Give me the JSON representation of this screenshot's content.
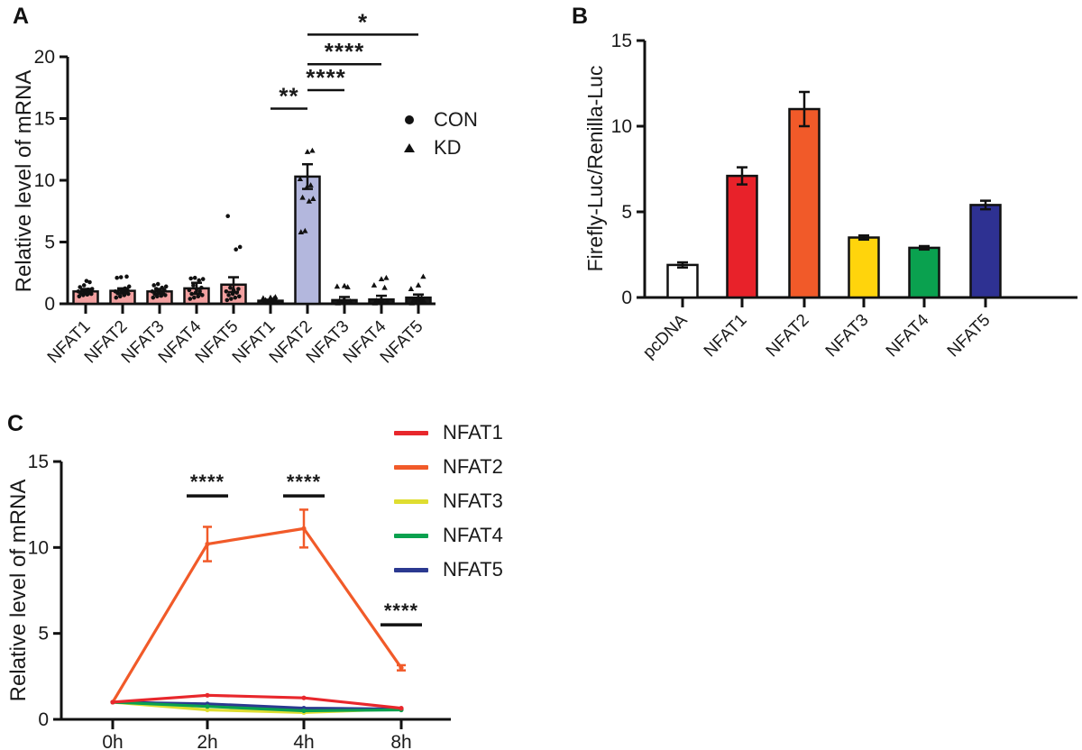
{
  "panels": {
    "a_label": "A",
    "b_label": "B",
    "c_label": "C"
  },
  "chart_data": [
    {
      "panel": "A",
      "type": "bar",
      "ylabel": "Relative level of mRNA",
      "ylim": [
        0,
        20
      ],
      "yticks": [
        0,
        5,
        10,
        15,
        20
      ],
      "categories": [
        "NFAT1",
        "NFAT2",
        "NFAT3",
        "NFAT4",
        "NFAT5",
        "NFAT1",
        "NFAT2",
        "NFAT3",
        "NFAT4",
        "NFAT5"
      ],
      "groups": [
        "CON",
        "CON",
        "CON",
        "CON",
        "CON",
        "KD",
        "KD",
        "KD",
        "KD",
        "KD"
      ],
      "values": [
        1.0,
        1.05,
        1.0,
        1.25,
        1.55,
        0.25,
        10.3,
        0.3,
        0.35,
        0.5
      ],
      "errors": [
        0.2,
        0.2,
        0.2,
        0.45,
        0.6,
        0.08,
        1.0,
        0.25,
        0.3,
        0.25
      ],
      "bar_colors": [
        "#F2A0A0",
        "#F2A0A0",
        "#F2A0A0",
        "#F2A0A0",
        "#F2A0A0",
        "#1A1A1A",
        "#B3B7DD",
        "#1A1A1A",
        "#1A1A1A",
        "#1A1A1A"
      ],
      "point_shapes": [
        "circle",
        "circle",
        "circle",
        "circle",
        "circle",
        "triangle",
        "triangle",
        "triangle",
        "triangle",
        "triangle"
      ],
      "points": [
        [
          0.6,
          0.7,
          0.75,
          0.8,
          0.85,
          0.9,
          0.95,
          1.0,
          1.0,
          1.05,
          1.1,
          1.15,
          1.2,
          1.35,
          1.5,
          1.75,
          1.85
        ],
        [
          0.5,
          0.6,
          0.7,
          0.8,
          0.85,
          0.9,
          0.95,
          1.0,
          1.05,
          1.1,
          1.15,
          1.25,
          1.4,
          2.1,
          2.15,
          2.2
        ],
        [
          0.5,
          0.6,
          0.65,
          0.7,
          0.8,
          0.9,
          0.95,
          1.0,
          1.05,
          1.1,
          1.2,
          1.3,
          1.4,
          1.5,
          1.6
        ],
        [
          0.4,
          0.5,
          0.6,
          0.7,
          0.8,
          0.9,
          1.0,
          1.1,
          1.2,
          1.3,
          1.5,
          1.9,
          2.0,
          2.05,
          2.1
        ],
        [
          0.3,
          0.4,
          0.5,
          0.6,
          0.7,
          0.8,
          0.9,
          1.0,
          1.1,
          1.2,
          1.3,
          4.4,
          4.6,
          7.1
        ],
        [
          0.1,
          0.15,
          0.2,
          0.25,
          0.3,
          0.35,
          0.4,
          0.45,
          0.5,
          0.55
        ],
        [
          5.8,
          5.9,
          8.3,
          8.5,
          8.6,
          9.4,
          9.6,
          10.1,
          12.3,
          12.4
        ],
        [
          0.05,
          0.1,
          0.15,
          0.2,
          0.25,
          0.3,
          1.35,
          1.4,
          1.45
        ],
        [
          0.05,
          0.1,
          0.15,
          0.2,
          0.25,
          0.3,
          1.3,
          1.5,
          2.0,
          2.1
        ],
        [
          0.05,
          0.1,
          0.15,
          0.2,
          0.3,
          0.4,
          0.5,
          1.2,
          1.5,
          2.2
        ]
      ],
      "significance": [
        {
          "from": 5,
          "to": 6,
          "y": 15.8,
          "label": "**"
        },
        {
          "from": 6,
          "to": 7,
          "y": 17.3,
          "label": "****"
        },
        {
          "from": 6,
          "to": 8,
          "y": 19.4,
          "label": "****"
        },
        {
          "from": 6,
          "to": 9,
          "y": 21.8,
          "label": "*"
        }
      ],
      "legend": [
        {
          "label": "CON",
          "marker": "circle"
        },
        {
          "label": "KD",
          "marker": "triangle"
        }
      ]
    },
    {
      "panel": "B",
      "type": "bar",
      "ylabel": "Firefly-Luc/Renilla-Luc",
      "ylim": [
        0,
        15
      ],
      "yticks": [
        0,
        5,
        10,
        15
      ],
      "categories": [
        "pcDNA",
        "NFAT1",
        "NFAT2",
        "NFAT3",
        "NFAT4",
        "NFAT5"
      ],
      "values": [
        1.9,
        7.1,
        11.0,
        3.5,
        2.9,
        5.4
      ],
      "errors": [
        0.15,
        0.5,
        1.0,
        0.12,
        0.1,
        0.25
      ],
      "bar_colors": [
        "#FFFFFF",
        "#E8222A",
        "#F15A29",
        "#FFD40C",
        "#0AA14F",
        "#2E3192"
      ]
    },
    {
      "panel": "C",
      "type": "line",
      "ylabel": "Relative level of mRNA",
      "ylim": [
        0,
        15
      ],
      "yticks": [
        0,
        5,
        10,
        15
      ],
      "x": [
        "0h",
        "2h",
        "4h",
        "8h"
      ],
      "series": [
        {
          "name": "NFAT1",
          "color": "#E8272C",
          "values": [
            1.0,
            1.4,
            1.25,
            0.65
          ],
          "errors": [
            0,
            0,
            0,
            0
          ]
        },
        {
          "name": "NFAT2",
          "color": "#F15A29",
          "values": [
            1.0,
            10.2,
            11.1,
            3.0
          ],
          "errors": [
            0,
            1.0,
            1.1,
            0.15
          ]
        },
        {
          "name": "NFAT3",
          "color": "#DFDD30",
          "values": [
            1.0,
            0.55,
            0.4,
            0.6
          ],
          "errors": [
            0,
            0,
            0,
            0
          ]
        },
        {
          "name": "NFAT4",
          "color": "#0AA14F",
          "values": [
            1.0,
            0.75,
            0.5,
            0.55
          ],
          "errors": [
            0,
            0,
            0,
            0
          ]
        },
        {
          "name": "NFAT5",
          "color": "#2B3990",
          "values": [
            1.0,
            0.9,
            0.65,
            0.6
          ],
          "errors": [
            0,
            0,
            0,
            0
          ]
        }
      ],
      "significance": [
        {
          "x": 1,
          "y": 13.0,
          "label": "****"
        },
        {
          "x": 2,
          "y": 13.0,
          "label": "****"
        },
        {
          "x": 3,
          "y": 5.5,
          "label": "****"
        }
      ]
    }
  ]
}
